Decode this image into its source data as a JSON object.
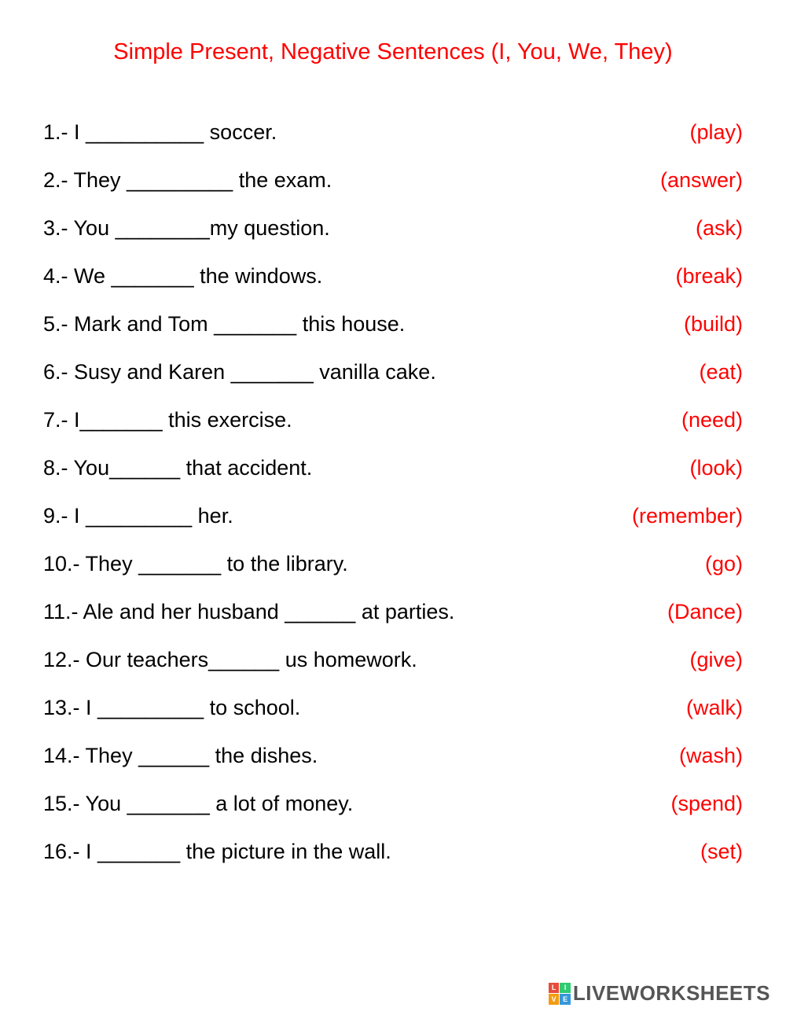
{
  "title": "Simple Present, Negative Sentences (I, You, We, They)",
  "title_color": "#ff0000",
  "title_fontsize": 29,
  "text_color": "#000000",
  "verb_color": "#ff0000",
  "sentence_fontsize": 27,
  "background_color": "#ffffff",
  "font_family": "Comic Sans MS",
  "sentences": [
    {
      "text": "1.- I __________ soccer.",
      "verb": "(play)"
    },
    {
      "text": "2.- They _________ the exam.",
      "verb": "(answer)"
    },
    {
      "text": "3.- You ________my question.",
      "verb": "(ask)"
    },
    {
      "text": "4.- We _______ the windows.",
      "verb": "(break)"
    },
    {
      "text": "5.- Mark and Tom _______ this house.",
      "verb": "(build)"
    },
    {
      "text": "6.- Susy and Karen _______ vanilla cake.",
      "verb": "(eat)"
    },
    {
      "text": "7.- I_______ this exercise.",
      "verb": "(need)"
    },
    {
      "text": "8.- You______ that accident.",
      "verb": "(look)"
    },
    {
      "text": "9.- I _________ her.",
      "verb": "(remember)"
    },
    {
      "text": "10.- They _______ to the library.",
      "verb": "(go)"
    },
    {
      "text": "11.- Ale and her husband ______ at parties.",
      "verb": "(Dance)"
    },
    {
      "text": "12.- Our teachers______ us homework.",
      "verb": "(give)"
    },
    {
      "text": "13.- I _________ to school.",
      "verb": "(walk)"
    },
    {
      "text": "14.- They ______ the dishes.",
      "verb": "(wash)"
    },
    {
      "text": "15.- You _______ a lot of money.",
      "verb": "(spend)"
    },
    {
      "text": "16.- I _______ the picture in the wall.",
      "verb": "(set)"
    }
  ],
  "watermark": {
    "logo_letters": [
      "L",
      "I",
      "V",
      "E"
    ],
    "text": "LIVEWORKSHEETS"
  }
}
